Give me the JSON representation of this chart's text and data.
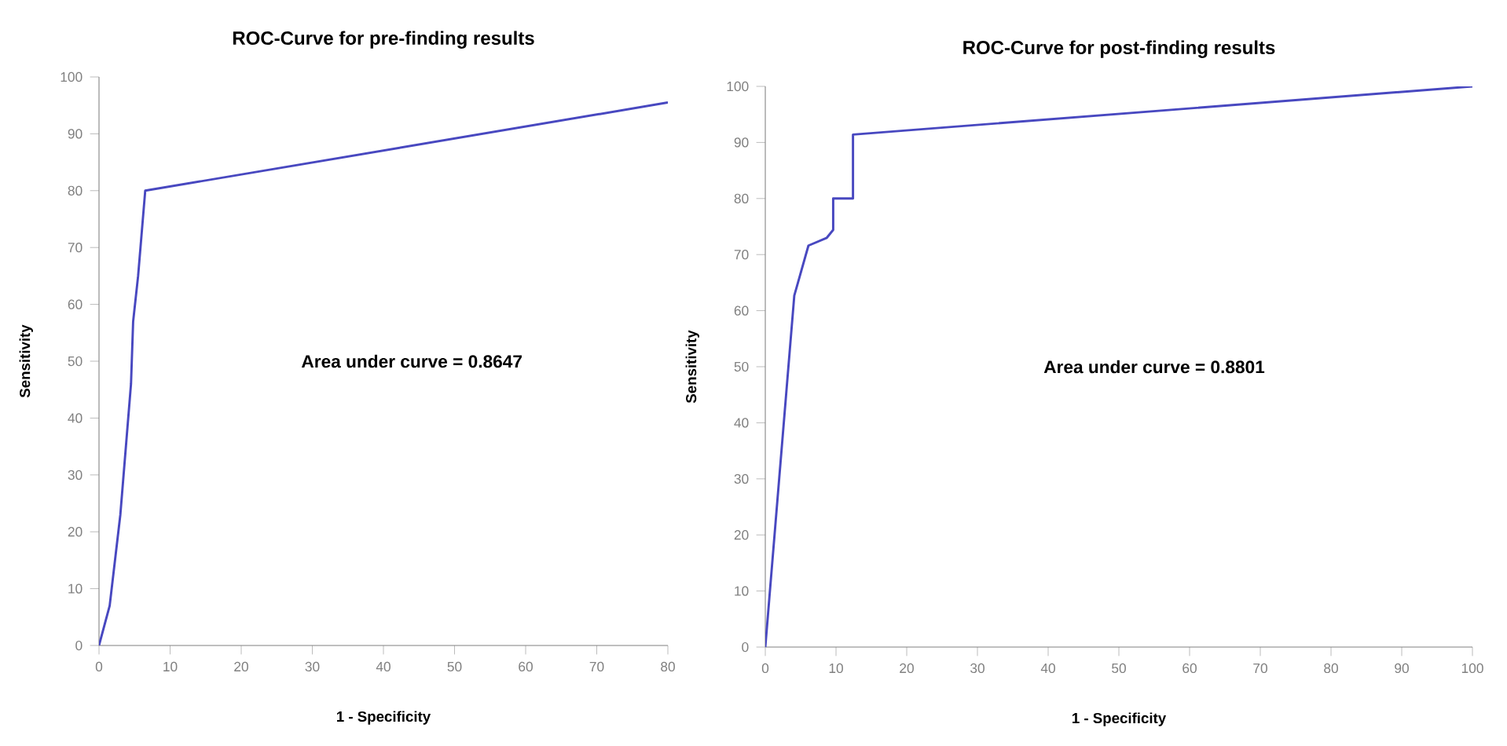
{
  "chart_data": [
    {
      "type": "line",
      "title": "ROC-Curve for pre-finding results",
      "xlabel": "1 - Specificity",
      "ylabel": "Sensitivity",
      "annotations": [
        "Area under curve = 0.8647"
      ],
      "x": [
        0,
        1.5,
        3,
        4.5,
        4.8,
        5.5,
        6.5,
        80
      ],
      "series": [
        {
          "color": "#4848c0",
          "values": [
            0,
            7,
            23,
            46,
            57,
            65,
            80,
            95.5
          ]
        }
      ],
      "xlim": [
        0,
        80
      ],
      "xticks": [
        0,
        10,
        20,
        30,
        40,
        50,
        60,
        70,
        80
      ],
      "ylim": [
        0,
        100
      ],
      "yticks": [
        0,
        10,
        20,
        30,
        40,
        50,
        60,
        70,
        80,
        90,
        100
      ],
      "grid": false
    },
    {
      "type": "line",
      "title": "ROC-Curve for post-finding results",
      "xlabel": "1 - Specificity",
      "ylabel": "Sensitivity",
      "annotations": [
        "Area under curve = 0.8801"
      ],
      "x": [
        0,
        4.1,
        6.1,
        8.7,
        9.6,
        9.6,
        12.4,
        12.4,
        100
      ],
      "series": [
        {
          "color": "#4848c0",
          "values": [
            0,
            62.7,
            71.6,
            73,
            74.4,
            80,
            80,
            91.4,
            100
          ]
        }
      ],
      "xlim": [
        0,
        100
      ],
      "xticks": [
        0,
        10,
        20,
        30,
        40,
        50,
        60,
        70,
        80,
        90,
        100
      ],
      "ylim": [
        0,
        100
      ],
      "yticks": [
        0,
        10,
        20,
        30,
        40,
        50,
        60,
        70,
        80,
        90,
        100
      ],
      "grid": false
    }
  ]
}
